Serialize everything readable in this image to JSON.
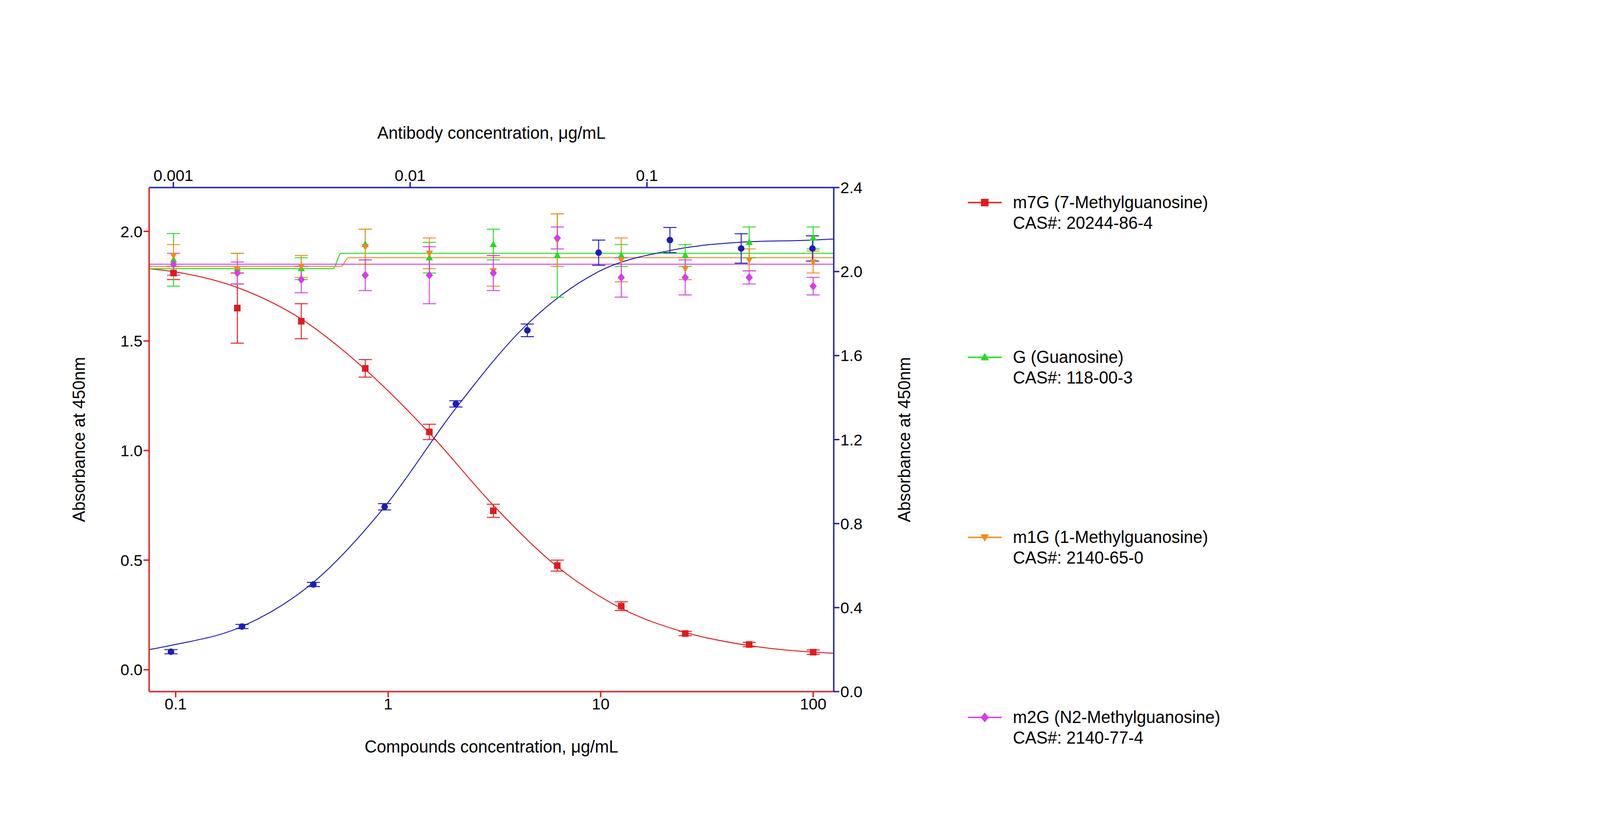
{
  "chart_data": {
    "type": "scatter",
    "x_label": "Compounds concentration, μg/mL",
    "x2_label": "Antibody concentration, μg/mL",
    "y_label": "Absorbance at 450nm",
    "y2_label": "Absorbance at 450nm",
    "log": "x",
    "xlim": [
      0.075,
      125
    ],
    "xticks": [
      0.1,
      1,
      10,
      100
    ],
    "x2lim": [
      0.00079,
      0.615
    ],
    "x2ticks": [
      0.001,
      0.01,
      0.1
    ],
    "ylim": [
      -0.1,
      2.2
    ],
    "yticks": [
      {
        "value": 0,
        "label": "0.0"
      },
      {
        "value": 0.5,
        "label": "0.5"
      },
      {
        "value": 1,
        "label": "1.0"
      },
      {
        "value": 1.5,
        "label": "1.5"
      },
      {
        "value": 2,
        "label": "2.0"
      }
    ],
    "y2lim": [
      0,
      2.4
    ],
    "y2ticks": [
      {
        "value": 0,
        "label": "0.0"
      },
      {
        "value": 0.4,
        "label": "0.4"
      },
      {
        "value": 0.8,
        "label": "0.8"
      },
      {
        "value": 1.2,
        "label": "1.2"
      },
      {
        "value": 1.6,
        "label": "1.6"
      },
      {
        "value": 2,
        "label": "2.0"
      },
      {
        "value": 2.4,
        "label": "2.4"
      }
    ],
    "series": [
      {
        "name": "m7G (7-Methylguanosine)",
        "cas": "CAS#: 20244-86-4",
        "color": "#e31a1c",
        "marker": "square",
        "x": [
          0.0977,
          0.195,
          0.39,
          0.78,
          1.5625,
          3.125,
          6.25,
          12.5,
          25,
          50,
          100
        ],
        "values": [
          1.81,
          1.65,
          1.59,
          1.375,
          1.085,
          0.725,
          0.475,
          0.29,
          0.165,
          0.115,
          0.08
        ],
        "errors": [
          0.03,
          0.16,
          0.08,
          0.04,
          0.035,
          0.03,
          0.025,
          0.02,
          0.01,
          0.01,
          0.01
        ],
        "fit_x": [
          0.075,
          0.1,
          0.2,
          0.39,
          0.78,
          1.5625,
          3.125,
          6.25,
          12.5,
          25,
          50,
          100,
          125
        ],
        "fit_values": [
          1.83,
          1.815,
          1.74,
          1.6,
          1.37,
          1.08,
          0.75,
          0.47,
          0.28,
          0.17,
          0.11,
          0.08,
          0.075
        ]
      },
      {
        "name": "G (Guanosine)",
        "cas": "CAS#: 118-00-3",
        "color": "#22dd22",
        "marker": "triangle",
        "x": [
          0.0977,
          0.195,
          0.39,
          0.78,
          1.5625,
          3.125,
          6.25,
          12.5,
          25,
          50,
          100
        ],
        "values": [
          1.87,
          1.83,
          1.83,
          1.94,
          1.88,
          1.94,
          1.89,
          1.89,
          1.89,
          1.95,
          1.97
        ],
        "errors": [
          0.12,
          0.07,
          0.05,
          0.07,
          0.07,
          0.07,
          0.19,
          0.05,
          0.05,
          0.07,
          0.05
        ],
        "fit_x": [
          0.075,
          0.55,
          0.6,
          125
        ],
        "fit_values": [
          1.83,
          1.83,
          1.9,
          1.9
        ]
      },
      {
        "name": "m1G (1-Methylguanosine)",
        "cas": "CAS#: 2140-65-0",
        "color": "#f28a1e",
        "marker": "triangle-down",
        "x": [
          0.0977,
          0.195,
          0.39,
          0.78,
          1.5625,
          3.125,
          6.25,
          12.5,
          25,
          50,
          100
        ],
        "values": [
          1.89,
          1.83,
          1.84,
          1.93,
          1.9,
          1.82,
          1.96,
          1.87,
          1.83,
          1.87,
          1.86
        ],
        "errors": [
          0.05,
          0.07,
          0.05,
          0.08,
          0.07,
          0.07,
          0.12,
          0.1,
          0.05,
          0.05,
          0.05
        ],
        "fit_x": [
          0.075,
          0.6,
          0.65,
          125
        ],
        "fit_values": [
          1.84,
          1.84,
          1.88,
          1.88
        ]
      },
      {
        "name": "m2G (N2-Methylguanosine)",
        "cas": "CAS#: 2140-77-4",
        "color": "#d63ce8",
        "marker": "diamond",
        "x": [
          0.0977,
          0.195,
          0.39,
          0.78,
          1.5625,
          3.125,
          6.25,
          12.5,
          25,
          50,
          100
        ],
        "values": [
          1.85,
          1.81,
          1.78,
          1.8,
          1.8,
          1.81,
          1.97,
          1.79,
          1.79,
          1.79,
          1.75
        ],
        "errors": [
          0.05,
          0.05,
          0.06,
          0.07,
          0.13,
          0.08,
          0.05,
          0.09,
          0.08,
          0.03,
          0.04
        ],
        "fit_x": [
          0.075,
          125
        ],
        "fit_values": [
          1.85,
          1.85
        ]
      },
      {
        "color": "#1c1cb8",
        "marker": "circle",
        "axis": "y2",
        "x": [
          0.000977,
          0.00195,
          0.0039,
          0.0078,
          0.0156,
          0.03125,
          0.0625,
          0.125,
          0.25,
          0.5
        ],
        "values": [
          0.19,
          0.31,
          0.51,
          0.88,
          1.37,
          1.72,
          2.09,
          2.15,
          2.11,
          2.11
        ],
        "errors": [
          0.01,
          0.01,
          0.01,
          0.015,
          0.015,
          0.03,
          0.06,
          0.06,
          0.07,
          0.06
        ],
        "fit_x": [
          0.00079,
          0.000977,
          0.00195,
          0.0039,
          0.0078,
          0.0156,
          0.03125,
          0.0625,
          0.125,
          0.25,
          0.5,
          0.615
        ],
        "fit_values": [
          0.2,
          0.22,
          0.31,
          0.52,
          0.88,
          1.35,
          1.75,
          2.0,
          2.1,
          2.14,
          2.15,
          2.155
        ]
      }
    ]
  }
}
